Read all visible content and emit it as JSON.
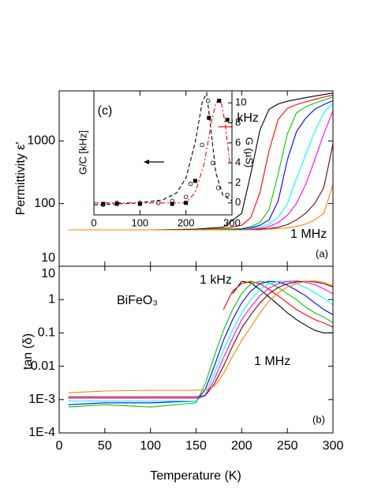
{
  "chart_data": [
    {
      "type": "line",
      "ylabel": "Permittivity ε'",
      "y_scale": "log",
      "ylim": [
        10,
        6300
      ],
      "yticks": [
        10,
        100,
        1000
      ],
      "xlim": [
        0,
        300
      ],
      "x": [
        10,
        50,
        100,
        150,
        180,
        200,
        210,
        220,
        230,
        240,
        250,
        260,
        270,
        280,
        290,
        300
      ],
      "series": [
        {
          "color": "#000000",
          "values": [
            38,
            38,
            38,
            39,
            42,
            70,
            300,
            1500,
            3200,
            3900,
            4300,
            4600,
            4900,
            5200,
            5500,
            5800
          ]
        },
        {
          "color": "#ff0000",
          "values": [
            38,
            38,
            38,
            38,
            40,
            45,
            60,
            150,
            700,
            2200,
            3300,
            3800,
            4200,
            4600,
            5000,
            5400
          ]
        },
        {
          "color": "#00cc00",
          "values": [
            38,
            38,
            38,
            38,
            39,
            40,
            43,
            50,
            80,
            300,
            1300,
            2800,
            3500,
            4000,
            4500,
            5000
          ]
        },
        {
          "color": "#0000ff",
          "values": [
            38,
            38,
            38,
            38,
            38,
            39,
            41,
            45,
            55,
            110,
            500,
            1400,
            2300,
            3200,
            3800,
            4400
          ]
        },
        {
          "color": "#00ffff",
          "values": [
            38,
            38,
            38,
            38,
            38,
            38,
            40,
            42,
            47,
            60,
            100,
            250,
            600,
            1400,
            2800,
            4000
          ]
        },
        {
          "color": "#ff00ff",
          "values": [
            38,
            38,
            38,
            38,
            38,
            38,
            39,
            40,
            43,
            50,
            65,
            100,
            200,
            500,
            1300,
            3000
          ]
        },
        {
          "color": "#800000",
          "values": [
            38,
            38,
            38,
            38,
            38,
            38,
            38,
            39,
            40,
            42,
            46,
            55,
            70,
            100,
            180,
            900
          ]
        },
        {
          "color": "#ff8000",
          "values": [
            38,
            38,
            38,
            38,
            38,
            38,
            38,
            38,
            39,
            40,
            41,
            43,
            47,
            55,
            70,
            200
          ]
        }
      ],
      "annotations": [
        "1 kHz",
        "1 MHz"
      ],
      "panel_label": "(a)"
    },
    {
      "type": "line",
      "ylabel": "tan (δ)",
      "xlabel": "Temperature (K)",
      "y_scale": "log",
      "ylim": [
        0.0001,
        10
      ],
      "yticks": [
        10,
        1,
        0.1,
        0.01,
        {
          "value": 0.001,
          "label": "1E-3"
        },
        {
          "value": 0.0001,
          "label": "1E-4"
        }
      ],
      "xlim": [
        0,
        300
      ],
      "xticks": [
        0,
        50,
        100,
        150,
        200,
        250,
        300
      ],
      "x": [
        10,
        50,
        100,
        150,
        160,
        170,
        180,
        190,
        200,
        210,
        220,
        230,
        240,
        250,
        260,
        270,
        280,
        290,
        300
      ],
      "series": [
        {
          "color": "#000000",
          "values": [
            null,
            null,
            null,
            null,
            null,
            null,
            null,
            1.5,
            3.5,
            3.2,
            2,
            1.2,
            0.7,
            0.4,
            0.25,
            0.17,
            0.12,
            0.1,
            0.1
          ]
        },
        {
          "color": "#ff0000",
          "values": [
            null,
            null,
            null,
            null,
            null,
            null,
            0.5,
            1.8,
            3,
            3.5,
            3,
            2,
            1.3,
            0.8,
            0.5,
            0.35,
            0.25,
            0.2,
            0.15
          ]
        },
        {
          "color": "#00cc00",
          "values": [
            0.0006,
            0.0007,
            0.0006,
            0.0008,
            0.003,
            0.02,
            0.12,
            0.5,
            1.5,
            3,
            3.5,
            3.2,
            2.3,
            1.5,
            1,
            0.6,
            0.4,
            0.3,
            0.2
          ]
        },
        {
          "color": "#0000ff",
          "values": [
            0.0007,
            0.0008,
            0.0008,
            0.0009,
            0.002,
            0.01,
            0.06,
            0.25,
            0.8,
            1.8,
            3,
            3.5,
            3.4,
            2.7,
            1.9,
            1.3,
            0.8,
            0.5,
            0.35
          ]
        },
        {
          "color": "#00ffff",
          "values": [
            0.0009,
            0.0009,
            0.0009,
            0.0009,
            0.0015,
            0.006,
            0.03,
            0.12,
            0.4,
            1,
            2,
            3,
            3.5,
            3.5,
            3,
            2.3,
            1.6,
            1.1,
            0.7
          ]
        },
        {
          "color": "#ff00ff",
          "values": [
            0.0011,
            0.0011,
            0.0011,
            0.0011,
            0.0013,
            0.004,
            0.018,
            0.07,
            0.25,
            0.6,
            1.3,
            2.2,
            3,
            3.5,
            3.6,
            3.3,
            2.8,
            2.1,
            1.5
          ]
        },
        {
          "color": "#800000",
          "values": [
            0.0012,
            0.0012,
            0.0012,
            0.0012,
            0.0013,
            0.003,
            0.01,
            0.04,
            0.14,
            0.35,
            0.8,
            1.5,
            2.3,
            3,
            3.4,
            3.5,
            3.4,
            3,
            2.4
          ]
        },
        {
          "color": "#ff8000",
          "values": [
            0.0016,
            0.0018,
            0.0019,
            0.0019,
            0.002,
            0.0025,
            0.006,
            0.02,
            0.06,
            0.15,
            0.4,
            0.9,
            1.6,
            2.4,
            3,
            3.5,
            3.6,
            3.3,
            2.6
          ]
        }
      ],
      "annotations": [
        "BiFeO₃",
        "1 kHz",
        "1 MHz"
      ],
      "panel_label": "(b)"
    },
    {
      "type": "line",
      "ylabel": "G/C [kHz]",
      "y2label": "G (µS)",
      "xlim": [
        0,
        300
      ],
      "xticks": [
        0,
        100,
        200,
        300
      ],
      "ylim": [
        -1.2,
        11.2
      ],
      "y2lim": [
        -1.2,
        11.2
      ],
      "y2ticks": [
        0,
        2,
        4,
        6,
        8,
        10
      ],
      "series": [
        {
          "color": "#000000",
          "line_style": "dash",
          "marker": "none",
          "x": [
            0,
            50,
            100,
            150,
            180,
            200,
            220,
            235,
            245,
            255,
            265,
            280,
            300
          ],
          "values": [
            -0.2,
            -0.1,
            0,
            0.3,
            1,
            2.5,
            6,
            10,
            11,
            7,
            3,
            0.8,
            0.2
          ]
        },
        {
          "color": "#000000",
          "line_style": "none",
          "marker": "circle-open",
          "x": [
            20,
            50,
            100,
            140,
            170,
            200,
            210,
            235,
            248,
            258,
            270,
            290
          ],
          "values": [
            -0.2,
            0,
            0,
            0,
            0.2,
            0.6,
            1.9,
            5.8,
            10.2,
            4,
            1.5,
            0.8
          ]
        },
        {
          "color": "#ff0000",
          "line_style": "dashdot",
          "marker": "none",
          "axis": "y2",
          "x": [
            0,
            100,
            200,
            220,
            240,
            255,
            265,
            275,
            285,
            295
          ],
          "values": [
            0,
            0,
            0,
            1,
            4,
            8,
            10,
            10.5,
            8,
            4
          ]
        },
        {
          "color": "#000000",
          "line_style": "none",
          "marker": "square",
          "axis": "y2",
          "x": [
            20,
            50,
            100,
            170,
            200,
            220,
            250,
            272,
            290
          ],
          "values": [
            -0.1,
            -0.1,
            -0.1,
            -0.1,
            0,
            2.2,
            8.5,
            10.2,
            8.3
          ]
        },
        {
          "color": "#ff0000",
          "line_style": "solid",
          "marker": "none",
          "axis": "y2",
          "x": [
            270,
            300
          ],
          "values": [
            7.6,
            7.6
          ]
        }
      ],
      "panel_label": "(c)"
    }
  ]
}
